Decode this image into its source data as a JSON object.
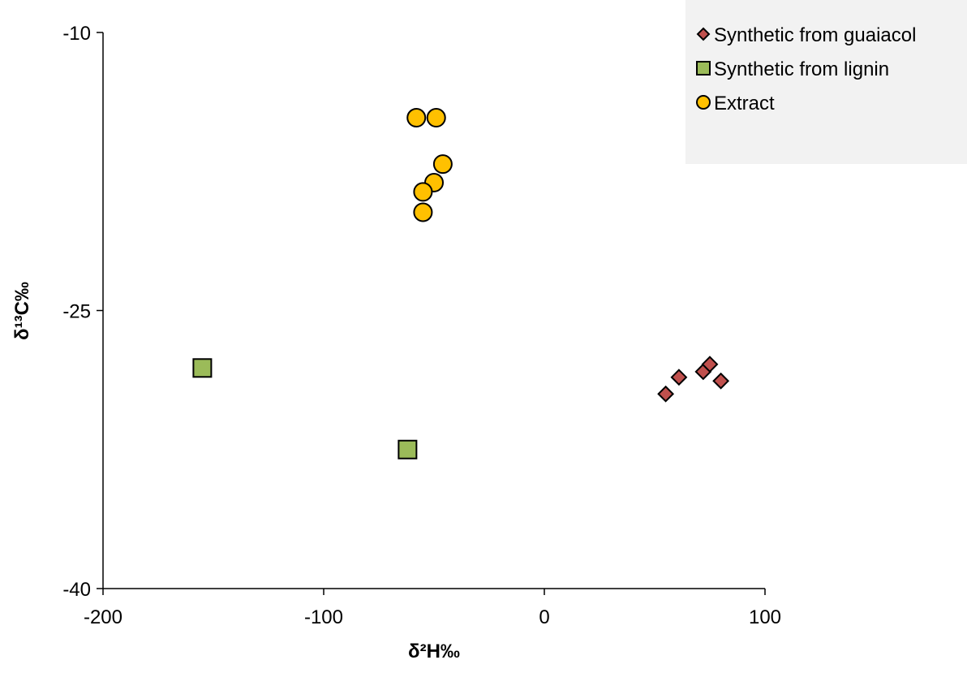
{
  "chart_data": {
    "type": "scatter",
    "title": "",
    "xlabel": "δ²H‰",
    "ylabel": "δ¹³C‰",
    "xlim": [
      -200,
      100
    ],
    "ylim": [
      -40,
      -10
    ],
    "xticks": [
      -200,
      -100,
      0,
      100
    ],
    "yticks": [
      -40,
      -25,
      -10
    ],
    "x_tick_labels": [
      "-200",
      "-100",
      "0",
      "100"
    ],
    "y_tick_labels": [
      "-40",
      "-25",
      "-10"
    ],
    "grid": false,
    "legend_position": "top-right",
    "series": [
      {
        "name": "Synthetic from guaiacol",
        "marker": "diamond",
        "color": "#c0504d",
        "points": [
          {
            "x": 55,
            "y": -29.5
          },
          {
            "x": 61,
            "y": -28.6
          },
          {
            "x": 72,
            "y": -28.3
          },
          {
            "x": 75,
            "y": -27.9
          },
          {
            "x": 80,
            "y": -28.8
          }
        ]
      },
      {
        "name": "Synthetic from lignin",
        "marker": "square",
        "color": "#9bbb59",
        "points": [
          {
            "x": -155,
            "y": -28.1
          },
          {
            "x": -62,
            "y": -32.5
          }
        ]
      },
      {
        "name": "Extract",
        "marker": "circle",
        "color": "#ffc000",
        "points": [
          {
            "x": -58,
            "y": -14.6
          },
          {
            "x": -49,
            "y": -14.6
          },
          {
            "x": -46,
            "y": -17.1
          },
          {
            "x": -50,
            "y": -18.1
          },
          {
            "x": -55,
            "y": -18.6
          },
          {
            "x": -55,
            "y": -19.7
          }
        ]
      }
    ]
  }
}
